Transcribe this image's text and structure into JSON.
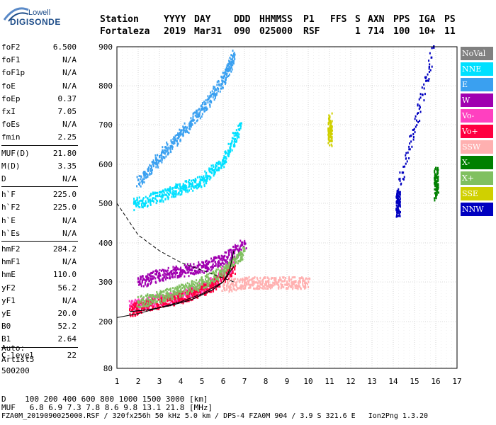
{
  "logo": {
    "line1": "Lowell",
    "line2": "DIGISONDE"
  },
  "header": {
    "labels": [
      "Station",
      "YYYY",
      "DAY",
      "DDD",
      "HHMMSS",
      "P1",
      "FFS",
      "S",
      "AXN",
      "PPS",
      "IGA",
      "PS"
    ],
    "values": [
      "Fortaleza",
      "2019",
      "Mar31",
      "090",
      "025000",
      "RSF",
      "1",
      "714",
      "100",
      "10+",
      "11"
    ]
  },
  "params": {
    "group1": [
      {
        "name": "foF2",
        "value": "6.500"
      },
      {
        "name": "foF1",
        "value": "N/A"
      },
      {
        "name": "foF1p",
        "value": "N/A"
      },
      {
        "name": "foE",
        "value": "N/A"
      },
      {
        "name": "foEp",
        "value": "0.37"
      },
      {
        "name": "fxI",
        "value": "7.05"
      },
      {
        "name": "foEs",
        "value": "N/A"
      },
      {
        "name": "fmin",
        "value": "2.25"
      }
    ],
    "group2": [
      {
        "name": "MUF(D)",
        "value": "21.80"
      },
      {
        "name": "M(D)",
        "value": "3.35"
      },
      {
        "name": "D",
        "value": "N/A"
      }
    ],
    "group3": [
      {
        "name": "h`F",
        "value": "225.0"
      },
      {
        "name": "h`F2",
        "value": "225.0"
      },
      {
        "name": "h`E",
        "value": "N/A"
      },
      {
        "name": "h`Es",
        "value": "N/A"
      }
    ],
    "group4": [
      {
        "name": "hmF2",
        "value": "284.2"
      },
      {
        "name": "hmF1",
        "value": "N/A"
      },
      {
        "name": "hmE",
        "value": "110.0"
      },
      {
        "name": "yF2",
        "value": "56.2"
      },
      {
        "name": "yF1",
        "value": "N/A"
      },
      {
        "name": "yE",
        "value": "20.0"
      },
      {
        "name": "B0",
        "value": "52.2"
      },
      {
        "name": "B1",
        "value": "2.64"
      }
    ],
    "group5": [
      {
        "name": "C-level",
        "value": "22"
      }
    ]
  },
  "auto": {
    "line1": "Auto:",
    "line2": "Artist5",
    "line3": "500200"
  },
  "legend": [
    {
      "label": "NoVal",
      "bg": "#808080",
      "fg": "#ffffff"
    },
    {
      "label": "NNE",
      "bg": "#00e0ff",
      "fg": "#ffffff"
    },
    {
      "label": "E",
      "bg": "#3aa0f0",
      "fg": "#ffffff"
    },
    {
      "label": "W",
      "bg": "#a000b0",
      "fg": "#ffffff"
    },
    {
      "label": "Vo-",
      "bg": "#ff40c0",
      "fg": "#ffffff"
    },
    {
      "label": "Vo+",
      "bg": "#ff0040",
      "fg": "#ffffff"
    },
    {
      "label": "SSW",
      "bg": "#ffb0b0",
      "fg": "#ffffff"
    },
    {
      "label": "X-",
      "bg": "#008000",
      "fg": "#ffffff"
    },
    {
      "label": "X+",
      "bg": "#80c060",
      "fg": "#ffffff"
    },
    {
      "label": "SSE",
      "bg": "#d0d000",
      "fg": "#ffffff"
    },
    {
      "label": "NNW",
      "bg": "#0000c0",
      "fg": "#ffffff"
    }
  ],
  "bottom": {
    "d_label": "D",
    "d_values": [
      "100",
      "200",
      "400",
      "600",
      "800",
      "1000",
      "1500",
      "3000",
      "[km]"
    ],
    "muf_label": "MUF",
    "muf_values": [
      "6.8",
      "6.9",
      "7.3",
      "7.8",
      "8.6",
      "9.8",
      "13.1",
      "21.8",
      "[MHz]"
    ],
    "footer": "FZA0M_2019090025000.RSF / 320fx256h 50 kHz 5.0 km / DPS-4 FZA0M 904 / 3.9 S 321.6 E   Ion2Png 1.3.20"
  },
  "chart_data": {
    "type": "scatter",
    "xlim": [
      1,
      17
    ],
    "ylim": [
      80,
      900
    ],
    "x_ticks": [
      1,
      2,
      3,
      4,
      5,
      6,
      7,
      8,
      9,
      10,
      11,
      12,
      13,
      14,
      15,
      16,
      17
    ],
    "y_ticks": [
      80,
      200,
      300,
      400,
      500,
      600,
      700,
      800,
      900
    ],
    "grid": true,
    "legend_placement": "right",
    "traces": [
      {
        "name": "E",
        "color": "#3aa0f0",
        "x": [
          2.0,
          3.0,
          4.0,
          5.0,
          6.0,
          6.5
        ],
        "y": [
          560,
          620,
          680,
          740,
          820,
          880
        ]
      },
      {
        "name": "NNE",
        "color": "#00e0ff",
        "x": [
          1.8,
          3.0,
          4.0,
          5.0,
          6.0,
          6.8
        ],
        "y": [
          500,
          520,
          540,
          560,
          610,
          700
        ]
      },
      {
        "name": "Vo-",
        "color": "#ff40c0",
        "x": [
          1.6,
          2.5,
          3.5,
          4.5,
          5.5,
          6.5
        ],
        "y": [
          240,
          250,
          260,
          275,
          300,
          350
        ]
      },
      {
        "name": "Vo+",
        "color": "#ff0040",
        "x": [
          1.6,
          2.5,
          3.5,
          4.5,
          5.5,
          6.5
        ],
        "y": [
          230,
          245,
          255,
          270,
          295,
          340
        ]
      },
      {
        "name": "W",
        "color": "#a000b0",
        "x": [
          2.0,
          3.0,
          4.0,
          5.0,
          6.0,
          7.0
        ],
        "y": [
          300,
          320,
          330,
          340,
          360,
          400
        ]
      },
      {
        "name": "X+",
        "color": "#80c060",
        "x": [
          2.0,
          3.0,
          4.0,
          5.0,
          6.0,
          7.0
        ],
        "y": [
          250,
          265,
          280,
          300,
          330,
          380
        ]
      },
      {
        "name": "SSW",
        "color": "#ffb0b0",
        "x": [
          6.0,
          7.0,
          8.0,
          9.0,
          10.0
        ],
        "y": [
          290,
          300,
          300,
          300,
          300
        ]
      },
      {
        "name": "NNW",
        "color": "#0000c0",
        "x": [
          14.2,
          14.2,
          15.9
        ],
        "y": [
          480,
          530,
          900
        ]
      },
      {
        "name": "SSE",
        "color": "#d0d000",
        "x": [
          11.0,
          11.0
        ],
        "y": [
          660,
          720
        ]
      },
      {
        "name": "X-",
        "color": "#008000",
        "x": [
          16.0,
          16.0
        ],
        "y": [
          520,
          590
        ]
      }
    ],
    "profile_curve": {
      "x": [
        1.6,
        2.5,
        3.5,
        4.5,
        5.5,
        6.0,
        6.3,
        6.5
      ],
      "y": [
        225,
        230,
        240,
        255,
        280,
        300,
        330,
        380
      ]
    },
    "lower_curve": {
      "x": [
        1.0,
        2.0,
        3.0,
        4.0,
        5.0,
        6.0,
        6.5
      ],
      "y": [
        210,
        220,
        235,
        250,
        270,
        300,
        340
      ]
    },
    "dashed_curve": {
      "x": [
        1.0,
        2.0,
        3.0,
        4.0,
        5.0,
        6.0,
        6.5
      ],
      "y": [
        500,
        420,
        380,
        350,
        330,
        310,
        300
      ]
    }
  }
}
